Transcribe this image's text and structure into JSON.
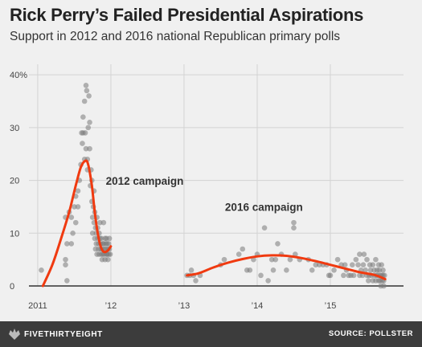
{
  "chart_data": {
    "type": "scatter",
    "title": "Rick Perry’s Failed Presidential Aspirations",
    "subtitle": "Support in 2012 and 2016 national Republican primary polls",
    "xlabel": "",
    "ylabel": "",
    "x_ticks": [
      {
        "value": 2011.0,
        "label": "2011"
      },
      {
        "value": 2012.0,
        "label": "’12"
      },
      {
        "value": 2013.0,
        "label": "’13"
      },
      {
        "value": 2014.0,
        "label": "’14"
      },
      {
        "value": 2015.0,
        "label": "’15"
      }
    ],
    "y_ticks": [
      {
        "value": 0,
        "label": "0"
      },
      {
        "value": 10,
        "label": "10"
      },
      {
        "value": 20,
        "label": "20"
      },
      {
        "value": 30,
        "label": "30"
      },
      {
        "value": 40,
        "label": "40%"
      }
    ],
    "xlim": [
      2010.88,
      2016.0
    ],
    "ylim": [
      0,
      42
    ],
    "grid": true,
    "colors": {
      "points": "#7a7a7a",
      "trend": "#f03a10",
      "grid": "#d3d3d3",
      "zero_line": "#333333"
    },
    "annotations": [
      {
        "text": "2012 campaign",
        "x": 2011.93,
        "y": 19.2
      },
      {
        "text": "2016 campaign",
        "x": 2013.56,
        "y": 14.2
      }
    ],
    "series": [
      {
        "kind": "points",
        "points": [
          [
            2011.05,
            3
          ],
          [
            2011.38,
            4
          ],
          [
            2011.38,
            5
          ],
          [
            2011.4,
            1
          ],
          [
            2011.38,
            13
          ],
          [
            2011.4,
            8
          ],
          [
            2011.43,
            14
          ],
          [
            2011.46,
            13
          ],
          [
            2011.46,
            8
          ],
          [
            2011.48,
            10
          ],
          [
            2011.5,
            15
          ],
          [
            2011.52,
            17
          ],
          [
            2011.52,
            12
          ],
          [
            2011.55,
            18
          ],
          [
            2011.55,
            15
          ],
          [
            2011.57,
            20
          ],
          [
            2011.59,
            23
          ],
          [
            2011.6,
            29
          ],
          [
            2011.61,
            27
          ],
          [
            2011.62,
            32
          ],
          [
            2011.62,
            29
          ],
          [
            2011.64,
            24
          ],
          [
            2011.64,
            35
          ],
          [
            2011.65,
            29
          ],
          [
            2011.66,
            26
          ],
          [
            2011.66,
            38
          ],
          [
            2011.67,
            37
          ],
          [
            2011.68,
            24
          ],
          [
            2011.68,
            22
          ],
          [
            2011.69,
            30
          ],
          [
            2011.7,
            36
          ],
          [
            2011.71,
            31
          ],
          [
            2011.71,
            26
          ],
          [
            2011.72,
            19
          ],
          [
            2011.73,
            22
          ],
          [
            2011.74,
            20
          ],
          [
            2011.74,
            16
          ],
          [
            2011.75,
            13
          ],
          [
            2011.75,
            10
          ],
          [
            2011.76,
            15
          ],
          [
            2011.77,
            18
          ],
          [
            2011.77,
            12
          ],
          [
            2011.78,
            14
          ],
          [
            2011.78,
            9
          ],
          [
            2011.79,
            11
          ],
          [
            2011.79,
            7
          ],
          [
            2011.8,
            10
          ],
          [
            2011.8,
            8
          ],
          [
            2011.81,
            13
          ],
          [
            2011.81,
            6
          ],
          [
            2011.82,
            9
          ],
          [
            2011.82,
            11
          ],
          [
            2011.83,
            7
          ],
          [
            2011.83,
            8
          ],
          [
            2011.84,
            10
          ],
          [
            2011.84,
            6
          ],
          [
            2011.85,
            12
          ],
          [
            2011.85,
            9
          ],
          [
            2011.86,
            8
          ],
          [
            2011.86,
            7
          ],
          [
            2011.87,
            6
          ],
          [
            2011.87,
            9
          ],
          [
            2011.88,
            5
          ],
          [
            2011.88,
            7
          ],
          [
            2011.89,
            8
          ],
          [
            2011.89,
            6
          ],
          [
            2011.9,
            12
          ],
          [
            2011.9,
            8
          ],
          [
            2011.91,
            7
          ],
          [
            2011.91,
            6
          ],
          [
            2011.92,
            9
          ],
          [
            2011.92,
            5
          ],
          [
            2011.93,
            8
          ],
          [
            2011.93,
            7
          ],
          [
            2011.94,
            6
          ],
          [
            2011.94,
            9
          ],
          [
            2011.95,
            8
          ],
          [
            2011.95,
            6
          ],
          [
            2011.96,
            7
          ],
          [
            2011.96,
            5
          ],
          [
            2011.97,
            8
          ],
          [
            2011.97,
            6
          ],
          [
            2011.98,
            7
          ],
          [
            2011.98,
            9
          ],
          [
            2011.99,
            6
          ],
          [
            2013.04,
            2
          ],
          [
            2013.08,
            2
          ],
          [
            2013.1,
            3
          ],
          [
            2013.13,
            2
          ],
          [
            2013.16,
            1
          ],
          [
            2013.22,
            2
          ],
          [
            2013.5,
            4
          ],
          [
            2013.55,
            5
          ],
          [
            2013.75,
            6
          ],
          [
            2013.8,
            7
          ],
          [
            2013.86,
            3
          ],
          [
            2013.9,
            3
          ],
          [
            2013.95,
            5
          ],
          [
            2014.0,
            6
          ],
          [
            2014.05,
            2
          ],
          [
            2014.1,
            11
          ],
          [
            2014.15,
            1
          ],
          [
            2014.2,
            5
          ],
          [
            2014.22,
            3
          ],
          [
            2014.25,
            5
          ],
          [
            2014.28,
            8
          ],
          [
            2014.33,
            6
          ],
          [
            2014.4,
            3
          ],
          [
            2014.45,
            5
          ],
          [
            2014.5,
            11
          ],
          [
            2014.5,
            12
          ],
          [
            2014.52,
            6
          ],
          [
            2014.58,
            5
          ],
          [
            2014.7,
            5
          ],
          [
            2014.75,
            3
          ],
          [
            2014.8,
            4
          ],
          [
            2014.85,
            4
          ],
          [
            2014.9,
            4
          ],
          [
            2014.95,
            4
          ],
          [
            2014.98,
            2
          ],
          [
            2015.0,
            2
          ],
          [
            2015.05,
            3
          ],
          [
            2015.1,
            5
          ],
          [
            2015.15,
            4
          ],
          [
            2015.18,
            2
          ],
          [
            2015.2,
            4
          ],
          [
            2015.22,
            3
          ],
          [
            2015.25,
            2
          ],
          [
            2015.28,
            2
          ],
          [
            2015.3,
            4
          ],
          [
            2015.32,
            2
          ],
          [
            2015.35,
            5
          ],
          [
            2015.38,
            4
          ],
          [
            2015.4,
            2
          ],
          [
            2015.4,
            6
          ],
          [
            2015.42,
            3
          ],
          [
            2015.44,
            2
          ],
          [
            2015.45,
            4
          ],
          [
            2015.46,
            6
          ],
          [
            2015.48,
            3
          ],
          [
            2015.5,
            2
          ],
          [
            2015.5,
            5
          ],
          [
            2015.52,
            1
          ],
          [
            2015.53,
            2
          ],
          [
            2015.54,
            4
          ],
          [
            2015.55,
            3
          ],
          [
            2015.56,
            2
          ],
          [
            2015.58,
            1
          ],
          [
            2015.58,
            4
          ],
          [
            2015.6,
            2
          ],
          [
            2015.6,
            3
          ],
          [
            2015.62,
            1
          ],
          [
            2015.62,
            5
          ],
          [
            2015.63,
            2
          ],
          [
            2015.64,
            3
          ],
          [
            2015.65,
            2
          ],
          [
            2015.66,
            1
          ],
          [
            2015.66,
            4
          ],
          [
            2015.67,
            3
          ],
          [
            2015.68,
            2
          ],
          [
            2015.68,
            1
          ],
          [
            2015.69,
            0
          ],
          [
            2015.7,
            2
          ],
          [
            2015.7,
            4
          ],
          [
            2015.71,
            1
          ],
          [
            2015.72,
            3
          ],
          [
            2015.72,
            2
          ],
          [
            2015.73,
            0
          ],
          [
            2015.73,
            1
          ],
          [
            2015.74,
            2
          ]
        ]
      },
      {
        "kind": "trend",
        "name": "2012 campaign",
        "points": [
          [
            2011.07,
            0
          ],
          [
            2011.2,
            4
          ],
          [
            2011.32,
            9
          ],
          [
            2011.43,
            14
          ],
          [
            2011.52,
            19
          ],
          [
            2011.59,
            22.5
          ],
          [
            2011.65,
            23.7
          ],
          [
            2011.69,
            23
          ],
          [
            2011.74,
            19
          ],
          [
            2011.78,
            14
          ],
          [
            2011.82,
            10
          ],
          [
            2011.86,
            7.5
          ],
          [
            2011.9,
            6.5
          ],
          [
            2011.95,
            6.6
          ],
          [
            2012.0,
            7.5
          ]
        ]
      },
      {
        "kind": "trend",
        "name": "2016 campaign",
        "points": [
          [
            2013.04,
            2
          ],
          [
            2013.2,
            2.4
          ],
          [
            2013.4,
            3.5
          ],
          [
            2013.6,
            4.4
          ],
          [
            2013.8,
            5.1
          ],
          [
            2014.0,
            5.6
          ],
          [
            2014.2,
            5.8
          ],
          [
            2014.4,
            5.7
          ],
          [
            2014.6,
            5.3
          ],
          [
            2014.8,
            4.7
          ],
          [
            2015.0,
            4.0
          ],
          [
            2015.2,
            3.3
          ],
          [
            2015.4,
            2.6
          ],
          [
            2015.6,
            2.1
          ],
          [
            2015.75,
            1.3
          ]
        ]
      }
    ]
  },
  "footer": {
    "brand": "FIVETHIRTYEIGHT",
    "source": "SOURCE: POLLSTER",
    "brand_icon": "fivethirtyeight-logo-icon"
  }
}
